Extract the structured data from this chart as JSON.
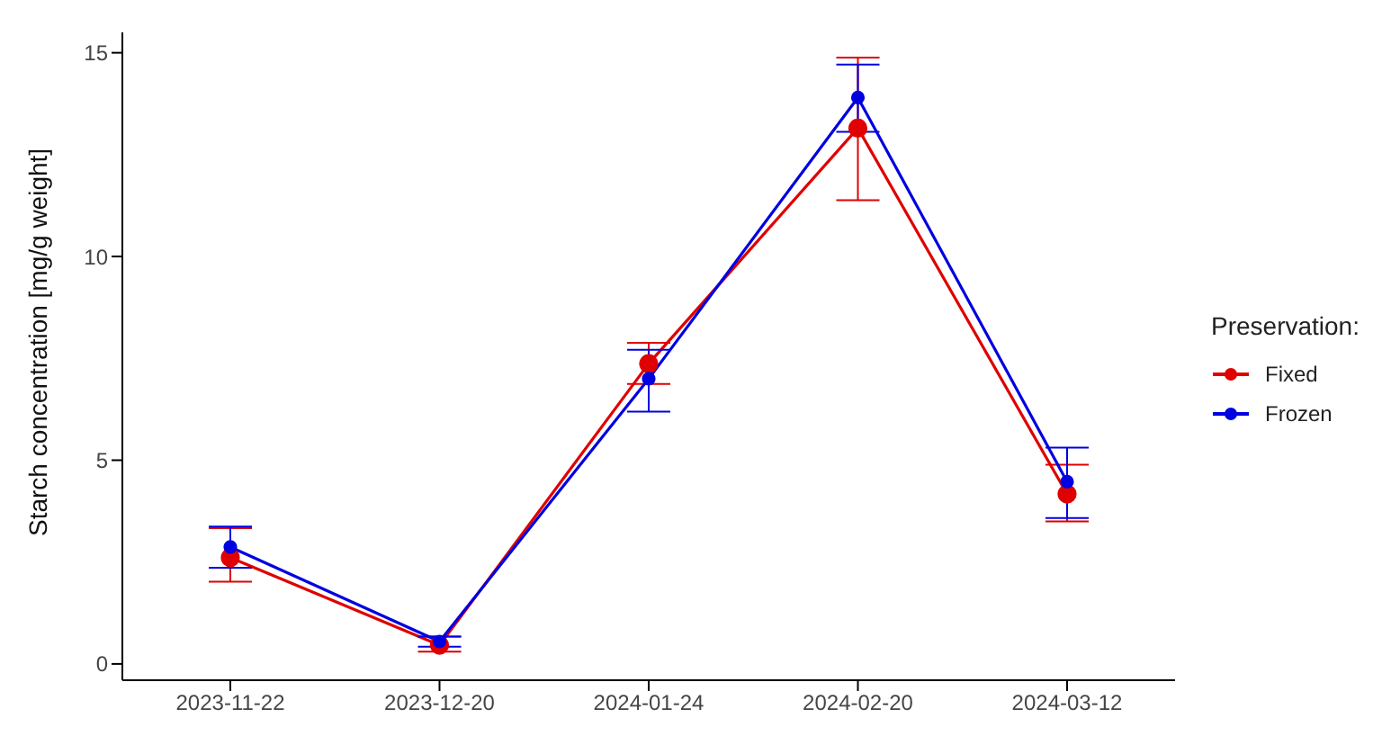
{
  "chart_data": {
    "type": "line",
    "ylabel": "Starch concentration [mg/g weight]",
    "legend_title": "Preservation:",
    "categories": [
      "2023-11-22",
      "2023-12-20",
      "2024-01-24",
      "2024-02-20",
      "2024-03-12"
    ],
    "series": [
      {
        "name": "Fixed",
        "color": "#e00000",
        "values": [
          2.61,
          0.46,
          7.37,
          13.15,
          4.17
        ],
        "errors": [
          [
            2.02,
            3.33
          ],
          [
            0.3,
            0.67
          ],
          [
            6.87,
            7.88
          ],
          [
            11.38,
            14.88
          ],
          [
            3.5,
            4.89
          ]
        ]
      },
      {
        "name": "Frozen",
        "color": "#0000e0",
        "values": [
          2.87,
          0.55,
          7.0,
          13.9,
          4.47
        ],
        "errors": [
          [
            2.36,
            3.37
          ],
          [
            0.42,
            0.67
          ],
          [
            6.19,
            7.71
          ],
          [
            13.06,
            14.71
          ],
          [
            3.58,
            5.31
          ]
        ]
      }
    ],
    "ylim": [
      -0.4,
      15.5
    ],
    "yticks": [
      0,
      5,
      10,
      15
    ],
    "grid": false,
    "legend": "right",
    "marker": "circle",
    "line_style": "solid"
  }
}
